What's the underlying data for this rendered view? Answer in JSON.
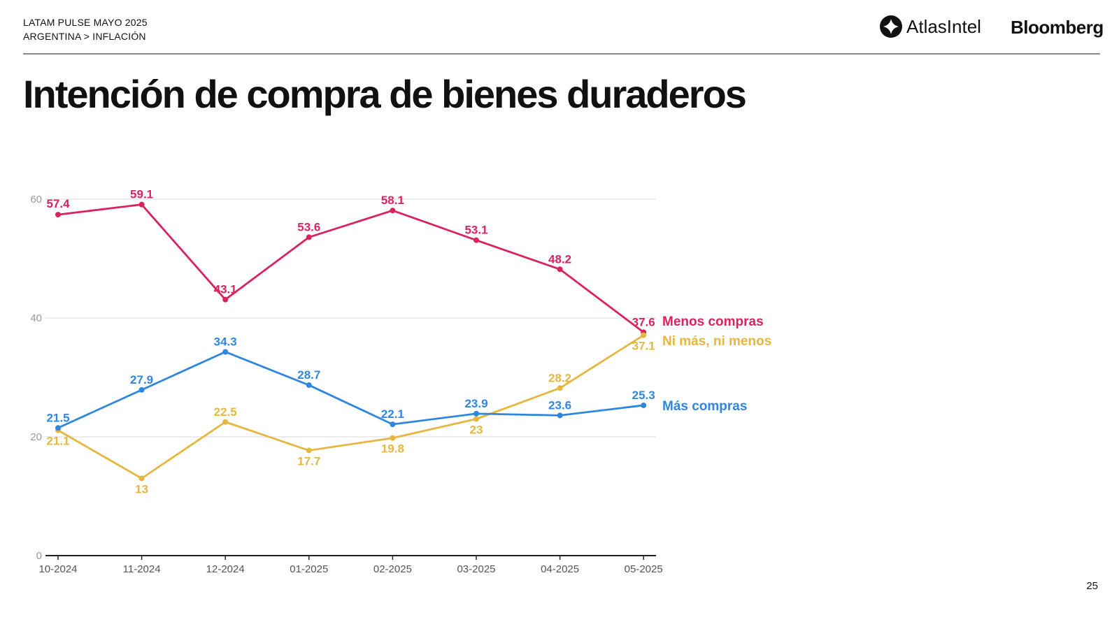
{
  "header": {
    "line1": "LATAM PULSE MAYO 2025",
    "line2": "ARGENTINA > INFLACIÓN"
  },
  "logos": {
    "atlas": "AtlasIntel",
    "bloomberg": "Bloomberg"
  },
  "page_number": "25",
  "chart_data": {
    "type": "line",
    "title": "Intención de compra de bienes duraderos",
    "categories": [
      "10-2024",
      "11-2024",
      "12-2024",
      "01-2025",
      "02-2025",
      "03-2025",
      "04-2025",
      "05-2025"
    ],
    "ylim": [
      0,
      60
    ],
    "yticks": [
      0,
      20,
      40,
      60
    ],
    "grid": true,
    "legend_placement": "right-end-labels",
    "series": [
      {
        "name": "Menos compras",
        "color": "#d9235f",
        "values": [
          57.4,
          59.1,
          43.1,
          53.6,
          58.1,
          53.1,
          48.2,
          37.6
        ]
      },
      {
        "name": "Ni más, ni menos",
        "color": "#e6b740",
        "values": [
          21.1,
          13,
          22.5,
          17.7,
          19.8,
          23,
          28.2,
          37.1
        ]
      },
      {
        "name": "Más compras",
        "color": "#2f86e0",
        "values": [
          21.5,
          27.9,
          34.3,
          28.7,
          22.1,
          23.9,
          23.6,
          25.3
        ]
      }
    ]
  }
}
